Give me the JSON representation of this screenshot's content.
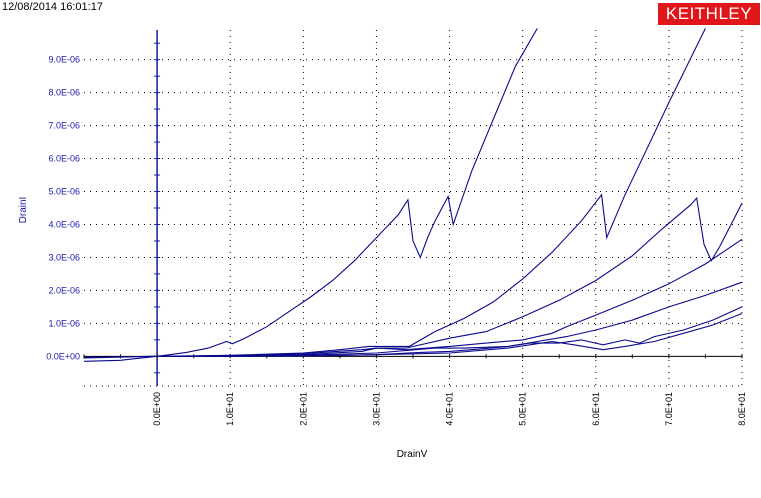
{
  "header": {
    "timestamp": "12/08/2014 16:01:17",
    "logo_text": "KEITHLEY"
  },
  "colors": {
    "series": "#0a0a8c",
    "y_axis": "#1a1aa6",
    "logo_bg": "#e1161b",
    "grid": "#000000"
  },
  "chart_data": {
    "type": "line",
    "xlabel": "DrainV",
    "ylabel": "DrainI",
    "xlim": [
      -10,
      80
    ],
    "ylim": [
      -9e-07,
      9.9e-06
    ],
    "x_ticks": [
      0,
      10,
      20,
      30,
      40,
      50,
      60,
      70,
      80
    ],
    "x_tick_labels": [
      "0.0E+00",
      "1.0E+01",
      "2.0E+01",
      "3.0E+01",
      "4.0E+01",
      "5.0E+01",
      "6.0E+01",
      "7.0E+01",
      "8.0E+01"
    ],
    "y_ticks": [
      0,
      1e-06,
      2e-06,
      3e-06,
      4e-06,
      5e-06,
      6e-06,
      7e-06,
      8e-06,
      9e-06
    ],
    "y_tick_labels": [
      "0.0E+00",
      "1.0E-06",
      "2.0E-06",
      "3.0E-06",
      "4.0E-06",
      "5.0E-06",
      "6.0E-06",
      "7.0E-06",
      "8.0E-06",
      "9.0E-06"
    ],
    "grid": true,
    "series": [
      {
        "points": [
          [
            -10,
            -1.5e-07
          ],
          [
            -5,
            -1.2e-07
          ],
          [
            0,
            0
          ],
          [
            4,
            1.2e-07
          ],
          [
            7,
            2.5e-07
          ],
          [
            9.5,
            4.5e-07
          ],
          [
            10.3,
            3.8e-07
          ],
          [
            12,
            5.5e-07
          ],
          [
            15,
            9e-07
          ],
          [
            18,
            1.35e-06
          ],
          [
            21,
            1.8e-06
          ],
          [
            24,
            2.3e-06
          ],
          [
            27,
            2.9e-06
          ],
          [
            30,
            3.6e-06
          ],
          [
            33,
            4.3e-06
          ],
          [
            34.3,
            4.75e-06
          ],
          [
            35,
            3.5e-06
          ],
          [
            36,
            3e-06
          ],
          [
            37,
            3.6e-06
          ],
          [
            38,
            4.1e-06
          ],
          [
            39.8,
            4.85e-06
          ],
          [
            40.5,
            4e-06
          ],
          [
            43,
            5.6e-06
          ],
          [
            46,
            7.2e-06
          ],
          [
            49,
            8.8e-06
          ],
          [
            52,
            9.95e-06
          ]
        ]
      },
      {
        "points": [
          [
            -10,
            -5e-08
          ],
          [
            0,
            0
          ],
          [
            10,
            3e-08
          ],
          [
            20,
            1e-07
          ],
          [
            25,
            2e-07
          ],
          [
            29,
            3e-07
          ],
          [
            32,
            3e-07
          ],
          [
            34.5,
            3e-07
          ],
          [
            38,
            7.5e-07
          ],
          [
            42,
            1.15e-06
          ],
          [
            46,
            1.65e-06
          ],
          [
            50,
            2.35e-06
          ],
          [
            54,
            3.15e-06
          ],
          [
            58,
            4.1e-06
          ],
          [
            60.8,
            4.9e-06
          ],
          [
            61.5,
            3.6e-06
          ],
          [
            64,
            4.9e-06
          ],
          [
            67,
            6.3e-06
          ],
          [
            70,
            7.7e-06
          ],
          [
            73,
            9.05e-06
          ],
          [
            75,
            9.95e-06
          ]
        ]
      },
      {
        "points": [
          [
            -10,
            -3e-08
          ],
          [
            0,
            0
          ],
          [
            10,
            1e-08
          ],
          [
            20,
            8e-08
          ],
          [
            28,
            2e-07
          ],
          [
            30,
            2.5e-07
          ],
          [
            32,
            2.5e-07
          ],
          [
            34,
            2.5e-07
          ],
          [
            40,
            5.5e-07
          ],
          [
            45,
            7.5e-07
          ],
          [
            50,
            1.2e-06
          ],
          [
            55,
            1.7e-06
          ],
          [
            60,
            2.3e-06
          ],
          [
            65,
            3.05e-06
          ],
          [
            69,
            3.85e-06
          ],
          [
            73,
            4.6e-06
          ],
          [
            73.8,
            4.8e-06
          ],
          [
            74.8,
            3.4e-06
          ],
          [
            75.8,
            2.9e-06
          ],
          [
            77,
            3.35e-06
          ],
          [
            80,
            4.65e-06
          ]
        ]
      },
      {
        "points": [
          [
            0,
            0
          ],
          [
            10,
            1e-08
          ],
          [
            20,
            5e-08
          ],
          [
            28,
            1.5e-07
          ],
          [
            30,
            2.5e-07
          ],
          [
            34,
            2e-07
          ],
          [
            40,
            3e-07
          ],
          [
            45,
            4e-07
          ],
          [
            50,
            5e-07
          ],
          [
            54,
            7e-07
          ],
          [
            56,
            9e-07
          ],
          [
            60,
            1.25e-06
          ],
          [
            65,
            1.7e-06
          ],
          [
            70,
            2.2e-06
          ],
          [
            75,
            2.8e-06
          ],
          [
            80,
            3.55e-06
          ]
        ]
      },
      {
        "points": [
          [
            0,
            0
          ],
          [
            10,
            5e-09
          ],
          [
            20,
            3e-08
          ],
          [
            30,
            1e-07
          ],
          [
            38,
            2.5e-07
          ],
          [
            42,
            2.5e-07
          ],
          [
            48,
            3e-07
          ],
          [
            52,
            4.5e-07
          ],
          [
            56,
            6e-07
          ],
          [
            60,
            8e-07
          ],
          [
            65,
            1.1e-06
          ],
          [
            70,
            1.5e-06
          ],
          [
            75,
            1.85e-06
          ],
          [
            80,
            2.25e-06
          ]
        ]
      },
      {
        "points": [
          [
            0,
            0
          ],
          [
            10,
            2e-09
          ],
          [
            20,
            1e-08
          ],
          [
            30,
            5e-08
          ],
          [
            36,
            1.2e-07
          ],
          [
            40,
            1.5e-07
          ],
          [
            44,
            2.2e-07
          ],
          [
            48,
            3e-07
          ],
          [
            51,
            4e-07
          ],
          [
            55,
            4e-07
          ],
          [
            58,
            5e-07
          ],
          [
            61,
            3.5e-07
          ],
          [
            64,
            5e-07
          ],
          [
            66,
            4e-07
          ],
          [
            68,
            6e-07
          ],
          [
            72,
            8e-07
          ],
          [
            76,
            1.1e-06
          ],
          [
            80,
            1.5e-06
          ]
        ]
      },
      {
        "points": [
          [
            0,
            0
          ],
          [
            20,
            1e-08
          ],
          [
            30,
            5e-08
          ],
          [
            40,
            1e-07
          ],
          [
            48,
            2.5e-07
          ],
          [
            51,
            3.5e-07
          ],
          [
            54,
            4.5e-07
          ],
          [
            57,
            3.5e-07
          ],
          [
            61,
            2e-07
          ],
          [
            64,
            3e-07
          ],
          [
            68,
            4.5e-07
          ],
          [
            72,
            7e-07
          ],
          [
            76,
            9.5e-07
          ],
          [
            80,
            1.3e-06
          ]
        ]
      }
    ]
  }
}
